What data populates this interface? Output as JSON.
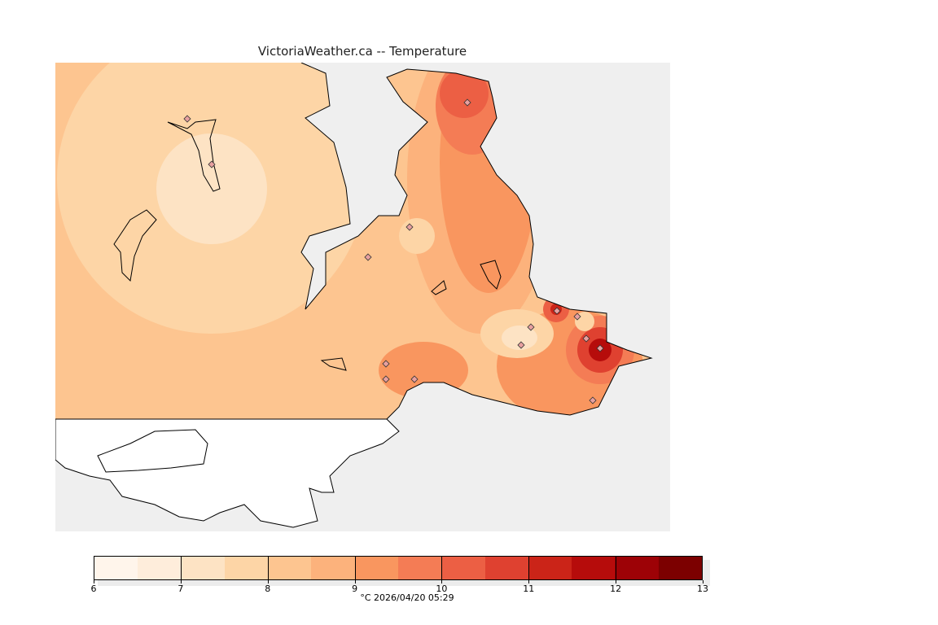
{
  "title": "VictoriaWeather.ca -- Temperature",
  "legend": {
    "unit_timestamp": "°C  2026/04/20 05:29",
    "min": 6,
    "max": 13,
    "step": 0.5,
    "ticks": [
      "6",
      "7",
      "8",
      "9",
      "10",
      "11",
      "12",
      "13"
    ],
    "colors": [
      "#fff5eb",
      "#feeddb",
      "#fde3c4",
      "#fdd5a6",
      "#fdc590",
      "#fcb27c",
      "#f9965f",
      "#f47c55",
      "#ec5f44",
      "#df4130",
      "#cb2418",
      "#b60c0b",
      "#9d0206",
      "#7c0000"
    ]
  },
  "map": {
    "water_color": "#efefef",
    "station_count": 15
  }
}
